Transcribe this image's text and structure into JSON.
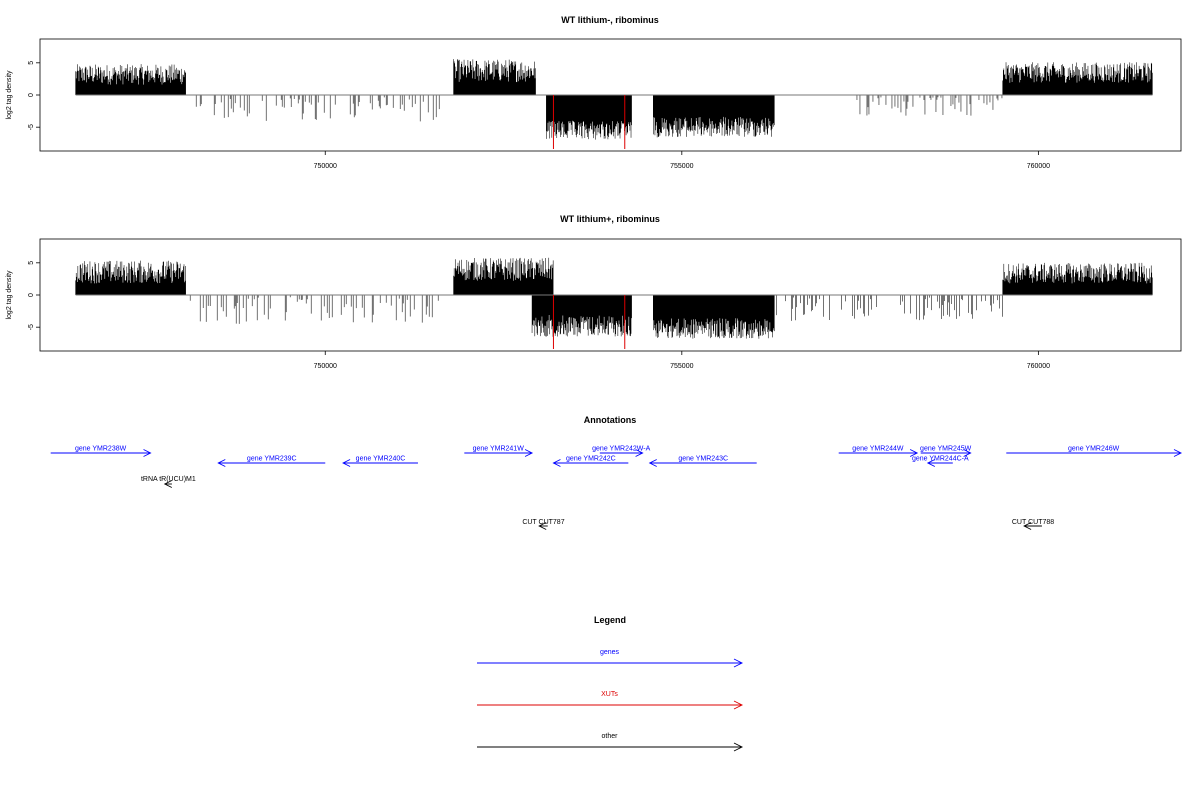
{
  "chart_data": [
    {
      "type": "bar",
      "title": "WT lithium-, ribominus",
      "ylabel": "log2 tag density",
      "xlim": [
        746000,
        762000
      ],
      "ylim": [
        -8.7,
        8.7
      ],
      "x_ticks": [
        750000,
        755000,
        760000
      ],
      "x_tick_labels": [
        "750000",
        "755000",
        "760000"
      ],
      "y_ticks": [
        -5,
        0,
        5
      ],
      "y_tick_labels": [
        "-5",
        "0",
        "5"
      ],
      "grid": false,
      "segments": [
        {
          "start": 746500,
          "end": 748050,
          "strand": "+",
          "mean": 3.2,
          "spread": 1.6
        },
        {
          "start": 748050,
          "end": 751600,
          "strand": "-",
          "mean": 1.8,
          "spread": 2.0,
          "sparse": true
        },
        {
          "start": 751800,
          "end": 752950,
          "strand": "+",
          "mean": 3.8,
          "spread": 1.8
        },
        {
          "start": 753100,
          "end": 754300,
          "strand": "-",
          "mean": 5.5,
          "spread": 1.5
        },
        {
          "start": 754600,
          "end": 756300,
          "strand": "-",
          "mean": 5.0,
          "spread": 1.6
        },
        {
          "start": 757400,
          "end": 759500,
          "strand": "-",
          "mean": 1.4,
          "spread": 1.6,
          "sparse": true
        },
        {
          "start": 759500,
          "end": 761600,
          "strand": "+",
          "mean": 3.5,
          "spread": 1.6
        }
      ],
      "highlights": [
        753200,
        754200
      ],
      "highlight_color": "#dd0000"
    },
    {
      "type": "bar",
      "title": "WT lithium+, ribominus",
      "ylabel": "log2 tag density",
      "xlim": [
        746000,
        762000
      ],
      "ylim": [
        -8.7,
        8.7
      ],
      "x_ticks": [
        750000,
        755000,
        760000
      ],
      "x_tick_labels": [
        "750000",
        "755000",
        "760000"
      ],
      "y_ticks": [
        -5,
        0,
        5
      ],
      "y_tick_labels": [
        "-5",
        "0",
        "5"
      ],
      "grid": false,
      "segments": [
        {
          "start": 746500,
          "end": 748050,
          "strand": "+",
          "mean": 3.6,
          "spread": 1.8
        },
        {
          "start": 748050,
          "end": 751600,
          "strand": "-",
          "mean": 2.6,
          "spread": 1.6,
          "sparse": true
        },
        {
          "start": 751800,
          "end": 753200,
          "strand": "+",
          "mean": 4.0,
          "spread": 1.8
        },
        {
          "start": 752900,
          "end": 754300,
          "strand": "-",
          "mean": 4.8,
          "spread": 1.7
        },
        {
          "start": 754600,
          "end": 756300,
          "strand": "-",
          "mean": 5.2,
          "spread": 1.6
        },
        {
          "start": 756300,
          "end": 759500,
          "strand": "-",
          "mean": 2.2,
          "spread": 1.6,
          "sparse": true
        },
        {
          "start": 759500,
          "end": 761600,
          "strand": "+",
          "mean": 3.4,
          "spread": 1.6
        }
      ],
      "highlights": [
        753200,
        754200
      ],
      "highlight_color": "#dd0000"
    }
  ],
  "annotations": {
    "title": "Annotations",
    "xlim": [
      746000,
      762000
    ],
    "features": [
      {
        "label": "gene YMR238W",
        "start": 746150,
        "end": 747550,
        "strand": "+",
        "row": 0,
        "color": "#0000ff"
      },
      {
        "label": "gene YMR239C",
        "start": 748500,
        "end": 750000,
        "strand": "-",
        "row": 1,
        "color": "#0000ff"
      },
      {
        "label": "gene YMR240C",
        "start": 750250,
        "end": 751300,
        "strand": "-",
        "row": 1,
        "color": "#0000ff"
      },
      {
        "label": "gene YMR241W",
        "start": 751950,
        "end": 752900,
        "strand": "+",
        "row": 0,
        "color": "#0000ff"
      },
      {
        "label": "gene YMR242C",
        "start": 753200,
        "end": 754250,
        "strand": "-",
        "row": 1,
        "color": "#0000ff"
      },
      {
        "label": "gene YMR242W-A",
        "start": 753850,
        "end": 754450,
        "strand": "+",
        "row": 0,
        "color": "#0000ff"
      },
      {
        "label": "gene YMR243C",
        "start": 754550,
        "end": 756050,
        "strand": "-",
        "row": 1,
        "color": "#0000ff"
      },
      {
        "label": "gene YMR244W",
        "start": 757200,
        "end": 758300,
        "strand": "+",
        "row": 0,
        "color": "#0000ff"
      },
      {
        "label": "gene YMR245W",
        "start": 758350,
        "end": 759050,
        "strand": "+",
        "row": 0,
        "color": "#0000ff"
      },
      {
        "label": "gene YMR244C-A",
        "start": 758450,
        "end": 758800,
        "strand": "-",
        "row": 1,
        "color": "#0000ff"
      },
      {
        "label": "gene YMR246W",
        "start": 759550,
        "end": 762000,
        "strand": "+",
        "row": 0,
        "color": "#0000ff"
      },
      {
        "label": "tRNA tR(UCU)M1",
        "start": 747750,
        "end": 747850,
        "strand": "-",
        "row": 2,
        "color": "#000000"
      },
      {
        "label": "CUT CUT787",
        "start": 753000,
        "end": 753120,
        "strand": "-",
        "row": 3,
        "color": "#000000"
      },
      {
        "label": "CUT CUT788",
        "start": 759800,
        "end": 760050,
        "strand": "-",
        "row": 3,
        "color": "#000000"
      }
    ]
  },
  "legend": {
    "title": "Legend",
    "items": [
      {
        "label": "genes",
        "color": "#0000ff"
      },
      {
        "label": "XUTs",
        "color": "#dd0000"
      },
      {
        "label": "other",
        "color": "#000000"
      }
    ]
  }
}
